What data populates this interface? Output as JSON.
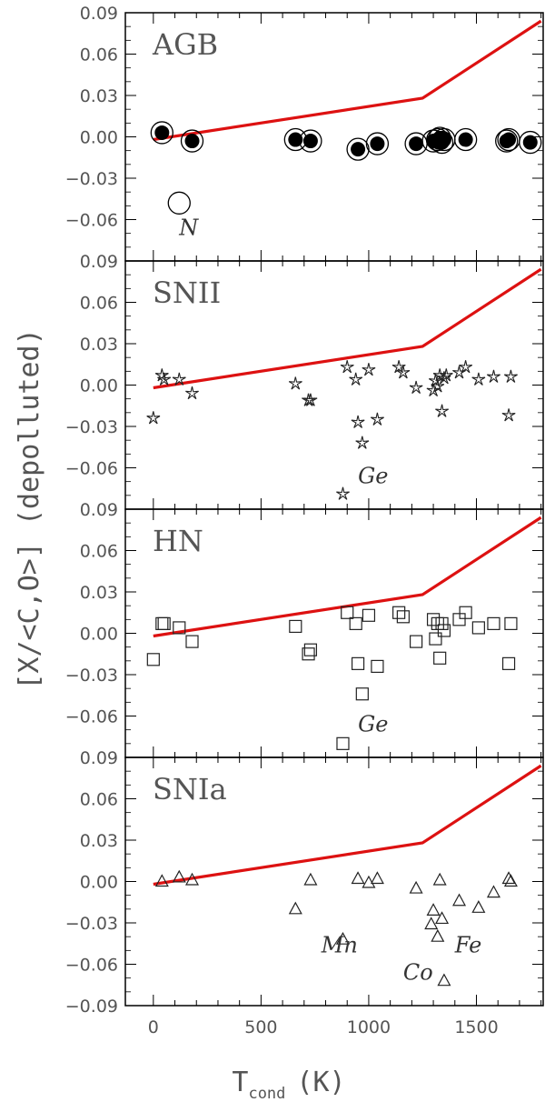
{
  "chart_data": {
    "type": "scatter",
    "xlabel": "T",
    "xlabel_sub": "cond",
    "xlabel_unit": "(K)",
    "ylabel": "[X/<C,O>] (depolluted)",
    "xlim": [
      -130,
      1810
    ],
    "x_ticks": [
      "0",
      "500",
      "1000",
      "1500"
    ],
    "x_tick_values": [
      0,
      500,
      1000,
      1500
    ],
    "y_ticks": [
      "0.09",
      "0.06",
      "0.03",
      "0.00",
      "−0.03",
      "−0.06",
      "−0.09"
    ],
    "y_tick_values": [
      0.09,
      0.06,
      0.03,
      0.0,
      -0.03,
      -0.06,
      -0.09
    ],
    "line": {
      "color": "#dd1111",
      "x": [
        0,
        1250,
        1800
      ],
      "y": [
        -0.002,
        0.028,
        0.084
      ]
    },
    "panels": [
      {
        "label": "AGB",
        "marker": "filled-circle",
        "points": [
          [
            40,
            0.003
          ],
          [
            180,
            -0.003
          ],
          [
            660,
            -0.002
          ],
          [
            730,
            -0.003
          ],
          [
            950,
            -0.009
          ],
          [
            1040,
            -0.005
          ],
          [
            1220,
            -0.005
          ],
          [
            1300,
            -0.003
          ],
          [
            1320,
            -0.002
          ],
          [
            1330,
            -0.001
          ],
          [
            1340,
            -0.004
          ],
          [
            1350,
            -0.002
          ],
          [
            1450,
            -0.002
          ],
          [
            1640,
            -0.003
          ],
          [
            1650,
            -0.002
          ],
          [
            1750,
            -0.004
          ]
        ],
        "annotations": [
          {
            "text": "N",
            "x": 120,
            "y": -0.066
          }
        ],
        "legend_marker": {
          "x": 120,
          "y": -0.048
        }
      },
      {
        "label": "SNII",
        "marker": "star",
        "points": [
          [
            0,
            -0.024
          ],
          [
            40,
            0.007
          ],
          [
            50,
            0.004
          ],
          [
            120,
            0.004
          ],
          [
            180,
            -0.006
          ],
          [
            660,
            0.001
          ],
          [
            720,
            -0.011
          ],
          [
            730,
            -0.011
          ],
          [
            900,
            0.013
          ],
          [
            940,
            0.004
          ],
          [
            950,
            -0.027
          ],
          [
            970,
            -0.042
          ],
          [
            1000,
            0.011
          ],
          [
            1040,
            -0.025
          ],
          [
            1140,
            0.013
          ],
          [
            1160,
            0.009
          ],
          [
            1220,
            -0.002
          ],
          [
            1300,
            -0.004
          ],
          [
            1310,
            0.003
          ],
          [
            1320,
            -0.001
          ],
          [
            1330,
            0.007
          ],
          [
            1340,
            -0.019
          ],
          [
            1350,
            0.005
          ],
          [
            1360,
            0.007
          ],
          [
            1420,
            0.009
          ],
          [
            1450,
            0.013
          ],
          [
            1510,
            0.004
          ],
          [
            1580,
            0.006
          ],
          [
            1650,
            -0.022
          ],
          [
            1660,
            0.006
          ],
          [
            880,
            -0.079
          ]
        ],
        "annotations": [
          {
            "text": "Ge",
            "x": 950,
            "y": -0.066
          }
        ]
      },
      {
        "label": "HN",
        "marker": "square",
        "points": [
          [
            0,
            -0.019
          ],
          [
            40,
            0.007
          ],
          [
            50,
            0.007
          ],
          [
            120,
            0.004
          ],
          [
            180,
            -0.006
          ],
          [
            660,
            0.005
          ],
          [
            720,
            -0.015
          ],
          [
            730,
            -0.012
          ],
          [
            900,
            0.015
          ],
          [
            940,
            0.007
          ],
          [
            950,
            -0.022
          ],
          [
            970,
            -0.044
          ],
          [
            1000,
            0.013
          ],
          [
            1040,
            -0.024
          ],
          [
            1140,
            0.015
          ],
          [
            1160,
            0.012
          ],
          [
            1220,
            -0.006
          ],
          [
            1300,
            0.01
          ],
          [
            1310,
            -0.004
          ],
          [
            1320,
            0.007
          ],
          [
            1330,
            -0.018
          ],
          [
            1340,
            0.007
          ],
          [
            1350,
            0.002
          ],
          [
            1420,
            0.01
          ],
          [
            1450,
            0.015
          ],
          [
            1510,
            0.004
          ],
          [
            1580,
            0.007
          ],
          [
            1650,
            -0.022
          ],
          [
            1660,
            0.007
          ],
          [
            880,
            -0.08
          ]
        ],
        "annotations": [
          {
            "text": "Ge",
            "x": 950,
            "y": -0.066
          }
        ]
      },
      {
        "label": "SNIa",
        "marker": "triangle",
        "points": [
          [
            40,
            0.0
          ],
          [
            120,
            0.003
          ],
          [
            180,
            0.001
          ],
          [
            660,
            -0.02
          ],
          [
            730,
            0.001
          ],
          [
            950,
            0.002
          ],
          [
            1000,
            -0.001
          ],
          [
            1040,
            0.002
          ],
          [
            1220,
            -0.005
          ],
          [
            1290,
            -0.031
          ],
          [
            1300,
            -0.021
          ],
          [
            1320,
            -0.04
          ],
          [
            1330,
            0.001
          ],
          [
            1340,
            -0.027
          ],
          [
            1350,
            -0.072
          ],
          [
            1420,
            -0.014
          ],
          [
            1510,
            -0.019
          ],
          [
            1580,
            -0.008
          ],
          [
            1650,
            0.002
          ],
          [
            1660,
            0.0
          ],
          [
            880,
            -0.042
          ]
        ],
        "annotations": [
          {
            "text": "Mn",
            "x": 780,
            "y": -0.046
          },
          {
            "text": "Fe",
            "x": 1400,
            "y": -0.046
          },
          {
            "text": "Co",
            "x": 1160,
            "y": -0.066
          }
        ]
      }
    ]
  }
}
